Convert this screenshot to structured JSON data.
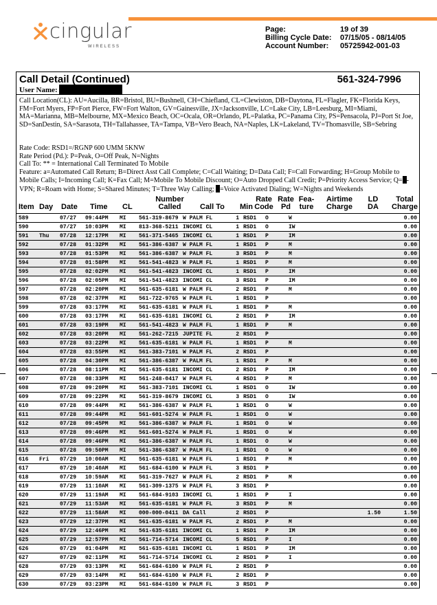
{
  "brand": {
    "name": "cingular",
    "sub": "WIRELESS",
    "accent": "#f7923a"
  },
  "meta": [
    {
      "label": "Page:",
      "value": "19 of 39"
    },
    {
      "label": "Billing Cycle Date:",
      "value": "07/15/05 - 08/14/05"
    },
    {
      "label": "Account Number:",
      "value": "05725942-001-03"
    }
  ],
  "section": {
    "title": "Call Detail (Continued)",
    "phone": "561-324-7996",
    "user_label": "User Name:"
  },
  "legend": {
    "call_location": "Call Location(CL):  AU=Aucilla, BR=Bristol, BU=Bushnell, CH=Chiefland, CL=Clewiston, DB=Daytona, FL=Flagler, FK=Florida Keys, FM=Fort Myers, FP=Fort Pierce, FW=Fort Walton, GV=Gainesville, JX=Jacksonville, LC=Lake City, LB=Leesburg, MI=Miami, MA=Marianna, MB=Melbourne, MX=Mexico Beach, OC=Ocala, OR=Orlando, PL=Palatka, PC=Panama City, PS=Pensacola, PJ=Port St Joe, SD=SanDestin, SA=Sarasota, TH=Tallahassee, TA=Tampa, VB=Vero Beach, NA=Naples, LK=Lakeland, TV=Thomasville, SB=Sebring",
    "rate_code": "Rate Code: RSD1=/RGNP 600 UMM 5KNW",
    "rate_period": "Rate Period (Pd.): P=Peak, O=Off Peak, N=Nights",
    "call_to": "Call To: ** = International Call Terminated To Mobile",
    "feature_a": "Feature: a=Automated Call Return; B=Direct Asst Call Complete; C=Call Waiting; D=Data Call; F=Call Forwarding; H=Group Mobile to Mobile Calls; I=Incoming Call; K=Fax Call; M=Mobile To Mobile Discount; O=Auto Dropped Call Credit; P=Priority Access Service; Q=",
    "feature_b": "-VPN; R=Roam with Home; S=Shared Minutes; T=Three Way Calling; ",
    "feature_c": "=Voice Activated Dialing; W=Nights and Weekends"
  },
  "columns": [
    "Item",
    "Day",
    "Date",
    "Time",
    "CL",
    "Number",
    "Called",
    "Call To",
    "Min",
    "Rate",
    "Code",
    "Rate",
    "Pd",
    "Fea-",
    "ture",
    "Airtime",
    "Charge",
    "LD",
    "DA",
    "Total",
    "Charge"
  ],
  "rows": [
    [
      "589",
      "",
      "07/27",
      "09:44PM",
      "MI",
      "561-319-8679",
      "W PALM FL",
      "1",
      "RSD1",
      "O",
      "W",
      "",
      "",
      "0.00"
    ],
    [
      "590",
      "",
      "07/27",
      "10:03PM",
      "MI",
      "813-368-5211",
      "INCOMI CL",
      "1",
      "RSD1",
      "O",
      "IW",
      "",
      "",
      "0.00"
    ],
    [
      "591",
      "Thu",
      "07/28",
      "12:17PM",
      "MI",
      "561-371-5465",
      "INCOMI CL",
      "1",
      "RSD1",
      "P",
      "IM",
      "",
      "",
      "0.00"
    ],
    [
      "592",
      "",
      "07/28",
      "01:32PM",
      "MI",
      "561-386-6387",
      "W PALM FL",
      "1",
      "RSD1",
      "P",
      "M",
      "",
      "",
      "0.00"
    ],
    [
      "593",
      "",
      "07/28",
      "01:53PM",
      "MI",
      "561-386-6387",
      "W PALM FL",
      "3",
      "RSD1",
      "P",
      "M",
      "",
      "",
      "0.00"
    ],
    [
      "594",
      "",
      "07/28",
      "01:58PM",
      "MI",
      "561-541-4823",
      "W PALM FL",
      "1",
      "RSD1",
      "P",
      "M",
      "",
      "",
      "0.00"
    ],
    [
      "595",
      "",
      "07/28",
      "02:02PM",
      "MI",
      "561-541-4823",
      "INCOMI CL",
      "1",
      "RSD1",
      "P",
      "IM",
      "",
      "",
      "0.00"
    ],
    [
      "596",
      "",
      "07/28",
      "02:05PM",
      "MI",
      "561-541-4823",
      "INCOMI CL",
      "3",
      "RSD1",
      "P",
      "IM",
      "",
      "",
      "0.00"
    ],
    [
      "597",
      "",
      "07/28",
      "02:20PM",
      "MI",
      "561-635-6181",
      "W PALM FL",
      "2",
      "RSD1",
      "P",
      "M",
      "",
      "",
      "0.00"
    ],
    [
      "598",
      "",
      "07/28",
      "02:37PM",
      "MI",
      "561-722-9765",
      "W PALM FL",
      "1",
      "RSD1",
      "P",
      "",
      "",
      "",
      "0.00"
    ],
    [
      "599",
      "",
      "07/28",
      "03:17PM",
      "MI",
      "561-635-6181",
      "W PALM FL",
      "1",
      "RSD1",
      "P",
      "M",
      "",
      "",
      "0.00"
    ],
    [
      "600",
      "",
      "07/28",
      "03:17PM",
      "MI",
      "561-635-6181",
      "INCOMI CL",
      "2",
      "RSD1",
      "P",
      "IM",
      "",
      "",
      "0.00"
    ],
    [
      "601",
      "",
      "07/28",
      "03:19PM",
      "MI",
      "561-541-4823",
      "W PALM FL",
      "1",
      "RSD1",
      "P",
      "M",
      "",
      "",
      "0.00"
    ],
    [
      "602",
      "",
      "07/28",
      "03:20PM",
      "MI",
      "561-262-7215",
      "JUPITE FL",
      "2",
      "RSD1",
      "P",
      "",
      "",
      "",
      "0.00"
    ],
    [
      "603",
      "",
      "07/28",
      "03:22PM",
      "MI",
      "561-635-6181",
      "W PALM FL",
      "1",
      "RSD1",
      "P",
      "M",
      "",
      "",
      "0.00"
    ],
    [
      "604",
      "",
      "07/28",
      "03:55PM",
      "MI",
      "561-383-7101",
      "W PALM FL",
      "2",
      "RSD1",
      "P",
      "",
      "",
      "",
      "0.00"
    ],
    [
      "605",
      "",
      "07/28",
      "04:30PM",
      "MI",
      "561-386-6387",
      "W PALM FL",
      "1",
      "RSD1",
      "P",
      "M",
      "",
      "",
      "0.00"
    ],
    [
      "606",
      "",
      "07/28",
      "08:11PM",
      "MI",
      "561-635-6181",
      "INCOMI CL",
      "2",
      "RSD1",
      "P",
      "IM",
      "",
      "",
      "0.00"
    ],
    [
      "607",
      "",
      "07/28",
      "08:33PM",
      "MI",
      "561-248-0417",
      "W PALM FL",
      "4",
      "RSD1",
      "P",
      "M",
      "",
      "",
      "0.00"
    ],
    [
      "608",
      "",
      "07/28",
      "09:20PM",
      "MI",
      "561-383-7101",
      "INCOMI CL",
      "1",
      "RSD1",
      "O",
      "IW",
      "",
      "",
      "0.00"
    ],
    [
      "609",
      "",
      "07/28",
      "09:22PM",
      "MI",
      "561-319-8679",
      "INCOMI CL",
      "3",
      "RSD1",
      "O",
      "IW",
      "",
      "",
      "0.00"
    ],
    [
      "610",
      "",
      "07/28",
      "09:44PM",
      "MI",
      "561-386-6387",
      "W PALM FL",
      "1",
      "RSD1",
      "O",
      "W",
      "",
      "",
      "0.00"
    ],
    [
      "611",
      "",
      "07/28",
      "09:44PM",
      "MI",
      "561-601-5274",
      "W PALM FL",
      "1",
      "RSD1",
      "O",
      "W",
      "",
      "",
      "0.00"
    ],
    [
      "612",
      "",
      "07/28",
      "09:45PM",
      "MI",
      "561-386-6387",
      "W PALM FL",
      "1",
      "RSD1",
      "O",
      "W",
      "",
      "",
      "0.00"
    ],
    [
      "613",
      "",
      "07/28",
      "09:46PM",
      "MI",
      "561-601-5274",
      "W PALM FL",
      "1",
      "RSD1",
      "O",
      "W",
      "",
      "",
      "0.00"
    ],
    [
      "614",
      "",
      "07/28",
      "09:46PM",
      "MI",
      "561-386-6387",
      "W PALM FL",
      "1",
      "RSD1",
      "O",
      "W",
      "",
      "",
      "0.00"
    ],
    [
      "615",
      "",
      "07/28",
      "09:50PM",
      "MI",
      "561-386-6387",
      "W PALM FL",
      "1",
      "RSD1",
      "O",
      "W",
      "",
      "",
      "0.00"
    ],
    [
      "616",
      "Fri",
      "07/29",
      "10:00AM",
      "MI",
      "561-635-6181",
      "W PALM FL",
      "1",
      "RSD1",
      "P",
      "M",
      "",
      "",
      "0.00"
    ],
    [
      "617",
      "",
      "07/29",
      "10:40AM",
      "MI",
      "561-684-6100",
      "W PALM FL",
      "3",
      "RSD1",
      "P",
      "",
      "",
      "",
      "0.00"
    ],
    [
      "618",
      "",
      "07/29",
      "10:59AM",
      "MI",
      "561-319-7627",
      "W PALM FL",
      "2",
      "RSD1",
      "P",
      "M",
      "",
      "",
      "0.00"
    ],
    [
      "619",
      "",
      "07/29",
      "11:10AM",
      "MI",
      "561-309-1375",
      "W PALM FL",
      "3",
      "RSD1",
      "P",
      "",
      "",
      "",
      "0.00"
    ],
    [
      "620",
      "",
      "07/29",
      "11:19AM",
      "MI",
      "561-684-9103",
      "INCOMI CL",
      "1",
      "RSD1",
      "P",
      "I",
      "",
      "",
      "0.00"
    ],
    [
      "621",
      "",
      "07/29",
      "11:53AM",
      "MI",
      "561-635-6181",
      "W PALM FL",
      "3",
      "RSD1",
      "P",
      "M",
      "",
      "",
      "0.00"
    ],
    [
      "622",
      "",
      "07/29",
      "11:58AM",
      "MI",
      "000-000-0411",
      "DA Call",
      "2",
      "RSD1",
      "P",
      "",
      "",
      "1.50",
      "1.50"
    ],
    [
      "623",
      "",
      "07/29",
      "12:37PM",
      "MI",
      "561-635-6181",
      "W PALM FL",
      "2",
      "RSD1",
      "P",
      "M",
      "",
      "",
      "0.00"
    ],
    [
      "624",
      "",
      "07/29",
      "12:46PM",
      "MI",
      "561-635-6181",
      "INCOMI CL",
      "1",
      "RSD1",
      "P",
      "IM",
      "",
      "",
      "0.00"
    ],
    [
      "625",
      "",
      "07/29",
      "12:57PM",
      "MI",
      "561-714-5714",
      "INCOMI CL",
      "5",
      "RSD1",
      "P",
      "I",
      "",
      "",
      "0.00"
    ],
    [
      "626",
      "",
      "07/29",
      "01:04PM",
      "MI",
      "561-635-6181",
      "INCOMI CL",
      "1",
      "RSD1",
      "P",
      "IM",
      "",
      "",
      "0.00"
    ],
    [
      "627",
      "",
      "07/29",
      "02:11PM",
      "MI",
      "561-714-5714",
      "INCOMI CL",
      "2",
      "RSD1",
      "P",
      "I",
      "",
      "",
      "0.00"
    ],
    [
      "628",
      "",
      "07/29",
      "03:13PM",
      "MI",
      "561-684-6100",
      "W PALM FL",
      "2",
      "RSD1",
      "P",
      "",
      "",
      "",
      "0.00"
    ],
    [
      "629",
      "",
      "07/29",
      "03:14PM",
      "MI",
      "561-684-6100",
      "W PALM FL",
      "2",
      "RSD1",
      "P",
      "",
      "",
      "",
      "0.00"
    ],
    [
      "630",
      "",
      "07/29",
      "03:23PM",
      "MI",
      "561-684-6100",
      "W PALM FL",
      "3",
      "RSD1",
      "P",
      "",
      "",
      "",
      "0.00"
    ]
  ]
}
